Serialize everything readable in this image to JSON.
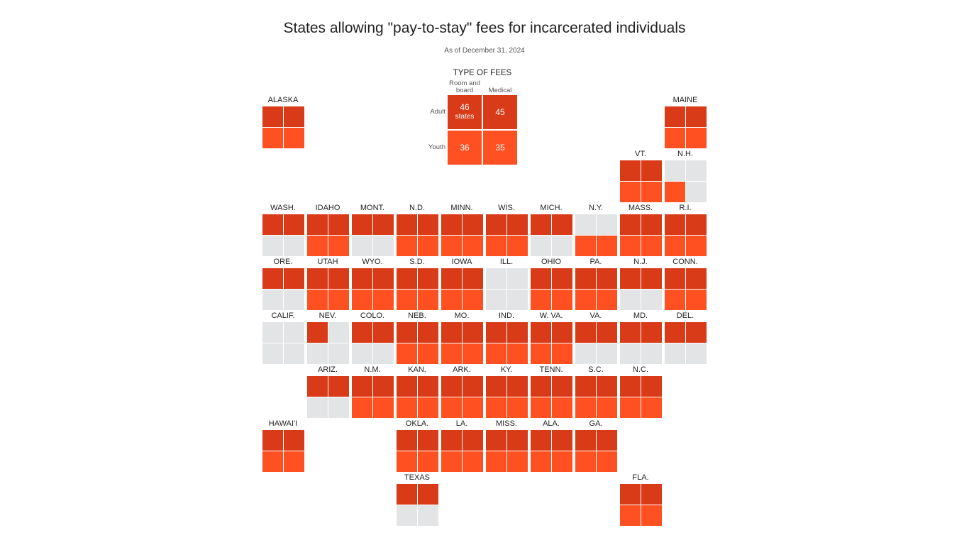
{
  "colors": {
    "adult": "#d93a17",
    "youth": "#ff5022",
    "none": "#e3e4e6"
  },
  "chart_data": {
    "type": "tile-map",
    "title": "States allowing \"pay-to-stay\" fees for incarcerated individuals",
    "subtitle": "As of December 31, 2024",
    "legend": {
      "title": "TYPE OF FEES",
      "columns": [
        "Room and board",
        "Medical"
      ],
      "rows": [
        "Adult",
        "Youth"
      ],
      "counts": {
        "adult_room": "46",
        "adult_medical": "45",
        "youth_room": "36",
        "youth_medical": "35"
      },
      "unit": "states"
    },
    "cell_order": [
      "adult_room",
      "adult_medical",
      "youth_room",
      "youth_medical"
    ],
    "states": [
      {
        "name": "ALASKA",
        "row": 0,
        "col": 0,
        "fees": [
          1,
          1,
          1,
          1
        ]
      },
      {
        "name": "MAINE",
        "row": 0,
        "col": 9,
        "fees": [
          1,
          1,
          1,
          1
        ]
      },
      {
        "name": "VT.",
        "row": 1,
        "col": 8,
        "fees": [
          1,
          1,
          1,
          1
        ]
      },
      {
        "name": "N.H.",
        "row": 1,
        "col": 9,
        "fees": [
          0,
          0,
          1,
          0
        ]
      },
      {
        "name": "WASH.",
        "row": 2,
        "col": 0,
        "fees": [
          1,
          1,
          0,
          0
        ]
      },
      {
        "name": "IDAHO",
        "row": 2,
        "col": 1,
        "fees": [
          1,
          1,
          1,
          1
        ]
      },
      {
        "name": "MONT.",
        "row": 2,
        "col": 2,
        "fees": [
          1,
          1,
          0,
          0
        ]
      },
      {
        "name": "N.D.",
        "row": 2,
        "col": 3,
        "fees": [
          1,
          1,
          1,
          1
        ]
      },
      {
        "name": "MINN.",
        "row": 2,
        "col": 4,
        "fees": [
          1,
          1,
          1,
          1
        ]
      },
      {
        "name": "WIS.",
        "row": 2,
        "col": 5,
        "fees": [
          1,
          1,
          1,
          1
        ]
      },
      {
        "name": "MICH.",
        "row": 2,
        "col": 6,
        "fees": [
          1,
          1,
          0,
          0
        ]
      },
      {
        "name": "N.Y.",
        "row": 2,
        "col": 7,
        "fees": [
          0,
          0,
          1,
          1
        ]
      },
      {
        "name": "MASS.",
        "row": 2,
        "col": 8,
        "fees": [
          1,
          1,
          1,
          1
        ]
      },
      {
        "name": "R.I.",
        "row": 2,
        "col": 9,
        "fees": [
          1,
          1,
          1,
          1
        ]
      },
      {
        "name": "ORE.",
        "row": 3,
        "col": 0,
        "fees": [
          1,
          1,
          0,
          0
        ]
      },
      {
        "name": "UTAH",
        "row": 3,
        "col": 1,
        "fees": [
          1,
          1,
          1,
          1
        ]
      },
      {
        "name": "WYO.",
        "row": 3,
        "col": 2,
        "fees": [
          1,
          1,
          1,
          1
        ]
      },
      {
        "name": "S.D.",
        "row": 3,
        "col": 3,
        "fees": [
          1,
          1,
          1,
          1
        ]
      },
      {
        "name": "IOWA",
        "row": 3,
        "col": 4,
        "fees": [
          1,
          1,
          1,
          1
        ]
      },
      {
        "name": "ILL.",
        "row": 3,
        "col": 5,
        "fees": [
          0,
          0,
          0,
          0
        ]
      },
      {
        "name": "OHIO",
        "row": 3,
        "col": 6,
        "fees": [
          1,
          1,
          1,
          1
        ]
      },
      {
        "name": "PA.",
        "row": 3,
        "col": 7,
        "fees": [
          1,
          1,
          1,
          1
        ]
      },
      {
        "name": "N.J.",
        "row": 3,
        "col": 8,
        "fees": [
          1,
          1,
          0,
          0
        ]
      },
      {
        "name": "CONN.",
        "row": 3,
        "col": 9,
        "fees": [
          1,
          1,
          1,
          1
        ]
      },
      {
        "name": "CALIF.",
        "row": 4,
        "col": 0,
        "fees": [
          0,
          0,
          0,
          0
        ]
      },
      {
        "name": "NEV.",
        "row": 4,
        "col": 1,
        "fees": [
          1,
          0,
          0,
          0
        ]
      },
      {
        "name": "COLO.",
        "row": 4,
        "col": 2,
        "fees": [
          1,
          1,
          0,
          0
        ]
      },
      {
        "name": "NEB.",
        "row": 4,
        "col": 3,
        "fees": [
          1,
          1,
          1,
          1
        ]
      },
      {
        "name": "MO.",
        "row": 4,
        "col": 4,
        "fees": [
          1,
          1,
          1,
          1
        ]
      },
      {
        "name": "IND.",
        "row": 4,
        "col": 5,
        "fees": [
          1,
          1,
          1,
          1
        ]
      },
      {
        "name": "W. VA.",
        "row": 4,
        "col": 6,
        "fees": [
          1,
          1,
          1,
          1
        ]
      },
      {
        "name": "VA.",
        "row": 4,
        "col": 7,
        "fees": [
          1,
          1,
          0,
          0
        ]
      },
      {
        "name": "MD.",
        "row": 4,
        "col": 8,
        "fees": [
          1,
          1,
          0,
          0
        ]
      },
      {
        "name": "DEL.",
        "row": 4,
        "col": 9,
        "fees": [
          1,
          1,
          0,
          0
        ]
      },
      {
        "name": "ARIZ.",
        "row": 5,
        "col": 1,
        "fees": [
          1,
          1,
          0,
          0
        ]
      },
      {
        "name": "N.M.",
        "row": 5,
        "col": 2,
        "fees": [
          1,
          1,
          1,
          1
        ]
      },
      {
        "name": "KAN.",
        "row": 5,
        "col": 3,
        "fees": [
          1,
          1,
          1,
          1
        ]
      },
      {
        "name": "ARK.",
        "row": 5,
        "col": 4,
        "fees": [
          1,
          1,
          1,
          1
        ]
      },
      {
        "name": "KY.",
        "row": 5,
        "col": 5,
        "fees": [
          1,
          1,
          1,
          1
        ]
      },
      {
        "name": "TENN.",
        "row": 5,
        "col": 6,
        "fees": [
          1,
          1,
          1,
          1
        ]
      },
      {
        "name": "S.C.",
        "row": 5,
        "col": 7,
        "fees": [
          1,
          1,
          1,
          1
        ]
      },
      {
        "name": "N.C.",
        "row": 5,
        "col": 8,
        "fees": [
          1,
          1,
          1,
          1
        ]
      },
      {
        "name": "HAWAI'I",
        "row": 6,
        "col": 0,
        "fees": [
          1,
          1,
          1,
          1
        ]
      },
      {
        "name": "OKLA.",
        "row": 6,
        "col": 3,
        "fees": [
          1,
          1,
          1,
          1
        ]
      },
      {
        "name": "LA.",
        "row": 6,
        "col": 4,
        "fees": [
          1,
          1,
          1,
          1
        ]
      },
      {
        "name": "MISS.",
        "row": 6,
        "col": 5,
        "fees": [
          1,
          1,
          1,
          1
        ]
      },
      {
        "name": "ALA.",
        "row": 6,
        "col": 6,
        "fees": [
          1,
          1,
          1,
          1
        ]
      },
      {
        "name": "GA.",
        "row": 6,
        "col": 7,
        "fees": [
          1,
          1,
          1,
          1
        ]
      },
      {
        "name": "TEXAS",
        "row": 7,
        "col": 3,
        "fees": [
          1,
          1,
          0,
          0
        ]
      },
      {
        "name": "FLA.",
        "row": 7,
        "col": 8,
        "fees": [
          1,
          1,
          1,
          1
        ]
      }
    ]
  }
}
